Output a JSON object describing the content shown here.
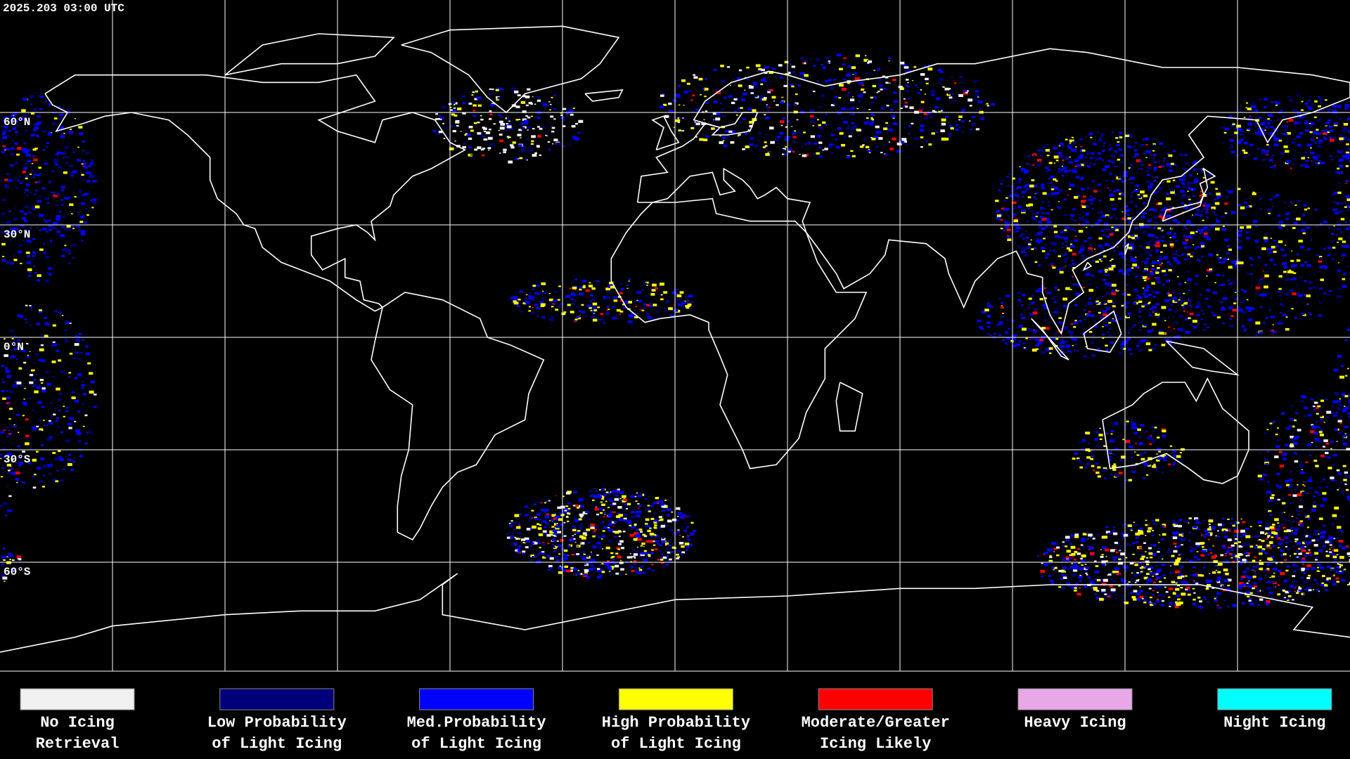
{
  "header": {
    "timestamp": "2025.203 03:00 UTC"
  },
  "map": {
    "latitude_labels": [
      "60°N",
      "30°N",
      "0°N",
      "30°S",
      "60°S"
    ]
  },
  "legend": {
    "items": [
      {
        "label_lines": [
          "No Icing",
          "Retrieval"
        ],
        "color": "#f0f0f0"
      },
      {
        "label_lines": [
          "Low Probability",
          "of Light Icing"
        ],
        "color": "#00007a"
      },
      {
        "label_lines": [
          "Med.Probability",
          "of Light Icing"
        ],
        "color": "#0000ff"
      },
      {
        "label_lines": [
          "High Probability",
          "of Light Icing"
        ],
        "color": "#ffff00"
      },
      {
        "label_lines": [
          "Moderate/Greater",
          "Icing Likely"
        ],
        "color": "#ff0000"
      },
      {
        "label_lines": [
          "Heavy Icing"
        ],
        "color": "#e8a8e8"
      },
      {
        "label_lines": [
          "Night Icing"
        ],
        "color": "#00ffff"
      }
    ]
  }
}
